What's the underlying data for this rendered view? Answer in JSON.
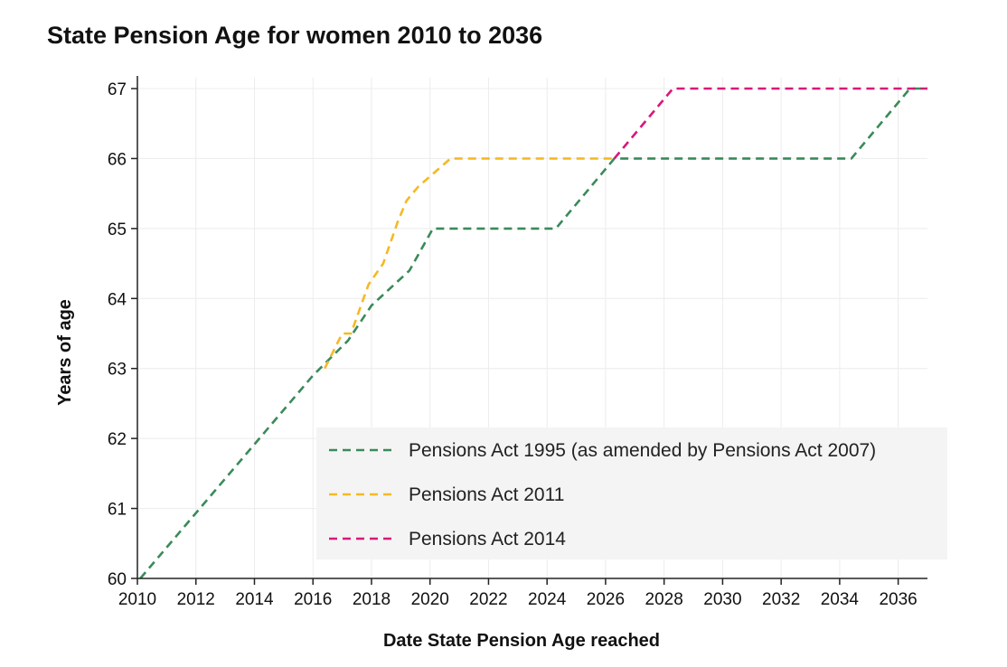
{
  "chart_data": {
    "type": "line",
    "title": "State Pension Age for women 2010 to 2036",
    "xlabel": "Date State Pension Age reached",
    "ylabel": "Years of age",
    "xlim": [
      2010,
      2037
    ],
    "ylim": [
      60,
      67
    ],
    "xticks": [
      2010,
      2012,
      2014,
      2016,
      2018,
      2020,
      2022,
      2024,
      2026,
      2028,
      2030,
      2032,
      2034,
      2036
    ],
    "yticks": [
      60,
      61,
      62,
      63,
      64,
      65,
      66,
      67
    ],
    "grid": true,
    "legend_position": "bottom-right",
    "series": [
      {
        "name": "Pensions Act 1995 (as amended by Pensions Act 2007)",
        "color": "#3a8a5a",
        "dash": "dashed",
        "points": [
          [
            2010.1,
            60
          ],
          [
            2016.0,
            62.9
          ],
          [
            2017.2,
            63.4
          ],
          [
            2018.0,
            63.9
          ],
          [
            2019.3,
            64.4
          ],
          [
            2020.1,
            65
          ],
          [
            2024.3,
            65
          ],
          [
            2026.3,
            66
          ],
          [
            2034.4,
            66
          ],
          [
            2036.4,
            67
          ],
          [
            2037.0,
            67
          ]
        ]
      },
      {
        "name": "Pensions Act 2011",
        "color": "#f5b924",
        "dash": "dashed",
        "points": [
          [
            2016.4,
            63.0
          ],
          [
            2017.0,
            63.5
          ],
          [
            2017.3,
            63.5
          ],
          [
            2017.9,
            64.2
          ],
          [
            2018.4,
            64.5
          ],
          [
            2018.9,
            65.1
          ],
          [
            2019.2,
            65.4
          ],
          [
            2019.6,
            65.6
          ],
          [
            2020.7,
            66
          ],
          [
            2026.3,
            66
          ]
        ]
      },
      {
        "name": "Pensions Act 2014",
        "color": "#d6197a",
        "dash": "dashed",
        "points": [
          [
            2026.3,
            66
          ],
          [
            2028.3,
            67
          ],
          [
            2037.0,
            67
          ]
        ]
      }
    ]
  }
}
